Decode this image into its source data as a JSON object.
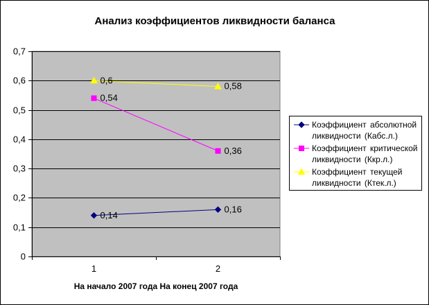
{
  "chart_data": {
    "type": "line",
    "title": "Анализ коэффициентов ликвидности баланса",
    "xlabel": "На начало 2007 года На конец 2007 года",
    "ylabel": "",
    "categories": [
      "1",
      "2"
    ],
    "ylim": [
      0,
      0.7
    ],
    "yticks": [
      "0",
      "0,1",
      "0,2",
      "0,3",
      "0,4",
      "0,5",
      "0,6",
      "0,7"
    ],
    "grid": true,
    "plot_background": "#c0c0c0",
    "legend_position": "right",
    "series": [
      {
        "name": "Коэффициент абсолютной ликвидности (Кабс.л.)",
        "name_lines": [
          "Коэффициент абсолютной",
          "ликвидности (Кабс.л.)"
        ],
        "values": [
          0.14,
          0.16
        ],
        "labels": [
          "0,14",
          "0,16"
        ],
        "color": "#000080",
        "marker": "diamond"
      },
      {
        "name": "Коэффициент критической ликвидности (Ккр.л.)",
        "name_lines": [
          "Коэффициент критической",
          "ликвидности (Ккр.л.)"
        ],
        "values": [
          0.54,
          0.36
        ],
        "labels": [
          "0,54",
          "0,36"
        ],
        "color": "#ff00ff",
        "marker": "square"
      },
      {
        "name": "Коэффициент текущей ликвидности (Ктек.л.)",
        "name_lines": [
          "Коэффициент текущей",
          "ликвидности (Ктек.л.)"
        ],
        "values": [
          0.6,
          0.58
        ],
        "labels": [
          "0,6",
          "0,58"
        ],
        "color": "#ffff00",
        "marker": "triangle"
      }
    ]
  }
}
